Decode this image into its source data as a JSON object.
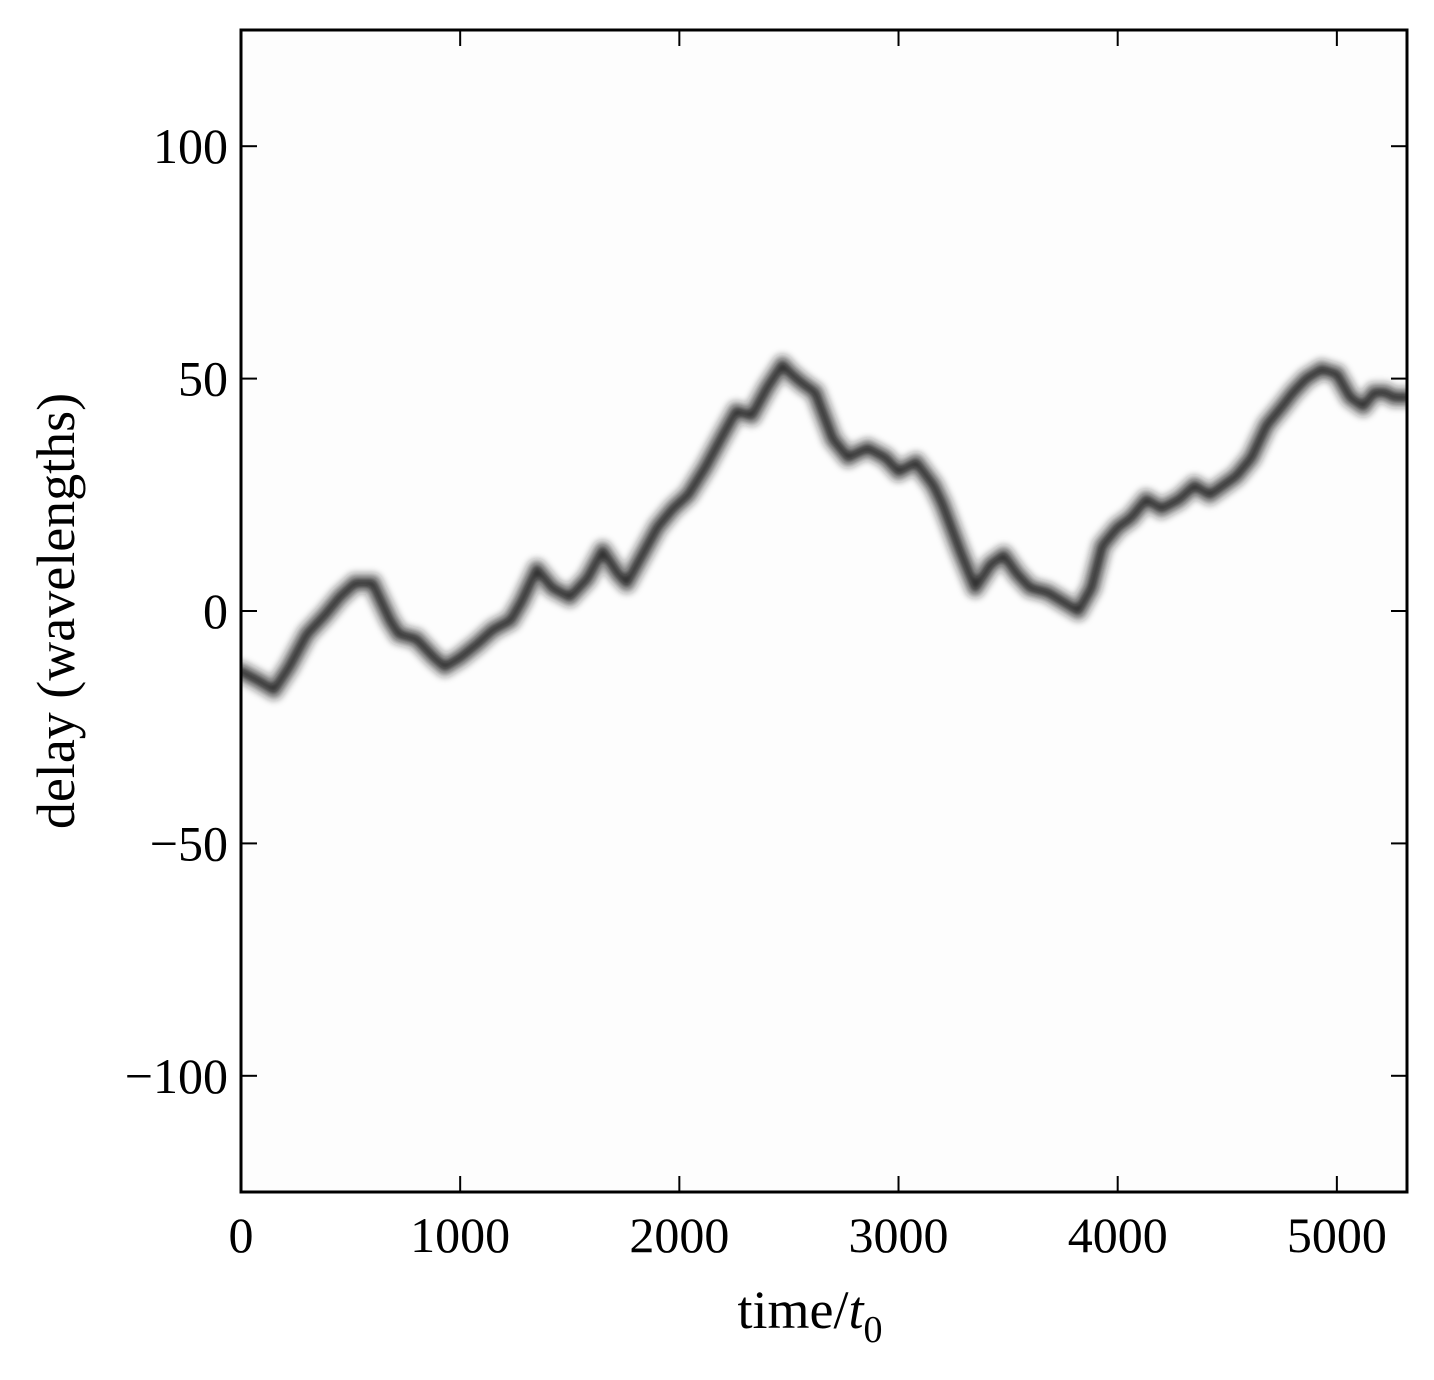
{
  "chart_data": {
    "type": "heatmap",
    "title": "",
    "xlabel": "time/",
    "xlabel_symbol": "t",
    "xlabel_subscript": "0",
    "ylabel": "delay (wavelengths)",
    "xlim": [
      0,
      5320
    ],
    "ylim": [
      -125,
      125
    ],
    "x_ticks": [
      0,
      1000,
      2000,
      3000,
      4000,
      5000
    ],
    "x_tick_labels": [
      "0",
      "1000",
      "2000",
      "3000",
      "4000",
      "5000"
    ],
    "y_ticks": [
      100,
      50,
      0,
      -50,
      -100
    ],
    "y_tick_labels": [
      "100",
      "50",
      "0",
      "−50",
      "−100"
    ],
    "grid": false,
    "colormap": "gray_r",
    "background_color": "#fdfdfd",
    "ridge_color": "#141414",
    "series": [
      {
        "x": [
          0,
          80,
          150,
          220,
          300,
          380,
          450,
          520,
          600,
          680,
          720,
          800,
          880,
          930,
          1000,
          1080,
          1150,
          1230,
          1280,
          1350,
          1420,
          1500,
          1580,
          1650,
          1720,
          1760,
          1830,
          1900,
          1970,
          2040,
          2120,
          2200,
          2260,
          2330,
          2400,
          2470,
          2510,
          2560,
          2620,
          2700,
          2770,
          2810,
          2860,
          2940,
          3000,
          3080,
          3160,
          3200,
          3280,
          3350,
          3420,
          3480,
          3540,
          3600,
          3680,
          3750,
          3820,
          3880,
          3930,
          4000,
          4060,
          4130,
          4200,
          4280,
          4350,
          4420,
          4480,
          4540,
          4610,
          4680,
          4750,
          4800,
          4860,
          4930,
          5000,
          5060,
          5120,
          5170,
          5220,
          5260,
          5320
        ],
        "y": [
          -13,
          -15,
          -17,
          -12,
          -5,
          -1,
          3,
          6,
          6,
          -2,
          -5,
          -6,
          -10,
          -12,
          -10,
          -7,
          -4,
          -2,
          2,
          9,
          5,
          3,
          7,
          13,
          8,
          6,
          12,
          18,
          22,
          25,
          31,
          38,
          43,
          42,
          48,
          53,
          51,
          49,
          47,
          37,
          33,
          34,
          35,
          33,
          30,
          32,
          27,
          23,
          13,
          5,
          10,
          12,
          8,
          5,
          4,
          2,
          0,
          5,
          14,
          18,
          20,
          24,
          22,
          24,
          27,
          25,
          27,
          29,
          33,
          40,
          44,
          47,
          50,
          52,
          51,
          46,
          44,
          47,
          47,
          46,
          46
        ]
      }
    ]
  }
}
